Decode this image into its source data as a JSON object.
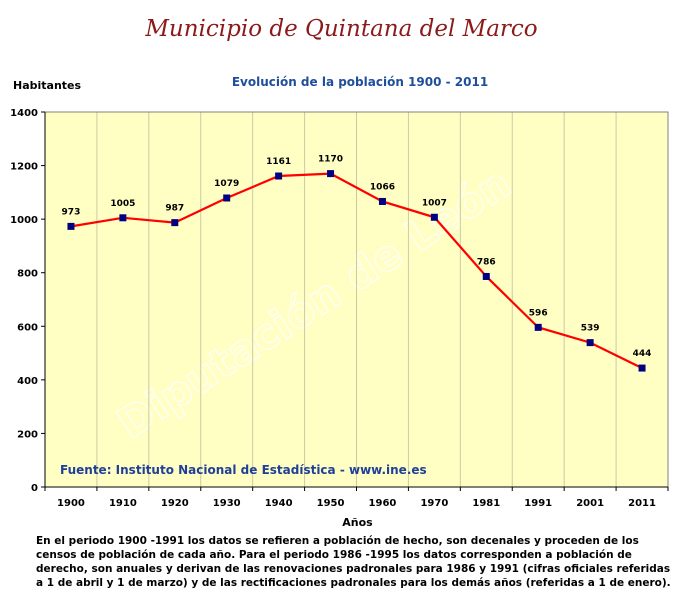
{
  "page": {
    "title": "Municipio de Quintana del Marco",
    "watermark": "Diputación de León",
    "source": "Fuente: Instituto Nacional de Estadística - www.ine.es",
    "footnote": "En el periodo 1900 -1991 los datos se refieren a población de hecho, son decenales y proceden de los censos de población de cada año. Para el periodo 1986 -1995 los datos corresponden a población de derecho, son anuales y derivan de las renovaciones padronales para 1986 y 1991 (cifras oficiales referidas a 1 de abril y 1 de marzo) y de las rectificaciones padronales para los demás años (referidas a 1 de enero)."
  },
  "colors": {
    "plot_background": "#ffffc4",
    "line": "#ff0000",
    "marker": "#000080",
    "title": "#8b1a1a",
    "subtitle": "#1f4e9c",
    "source": "#1f3f99"
  },
  "chart_data": {
    "type": "line",
    "title": "Evolución de la población 1900 - 2011",
    "xlabel": "Años",
    "ylabel": "Habitantes",
    "categories": [
      "1900",
      "1910",
      "1920",
      "1930",
      "1940",
      "1950",
      "1960",
      "1970",
      "1981",
      "1991",
      "2001",
      "2011"
    ],
    "series": [
      {
        "values": [
          973,
          1005,
          987,
          1079,
          1161,
          1170,
          1066,
          1007,
          786,
          596,
          539,
          444
        ]
      }
    ],
    "ylim": [
      0,
      1400
    ],
    "yticks": [
      0,
      200,
      400,
      600,
      800,
      1000,
      1200,
      1400
    ],
    "grid": "vertical",
    "legend": "none"
  }
}
